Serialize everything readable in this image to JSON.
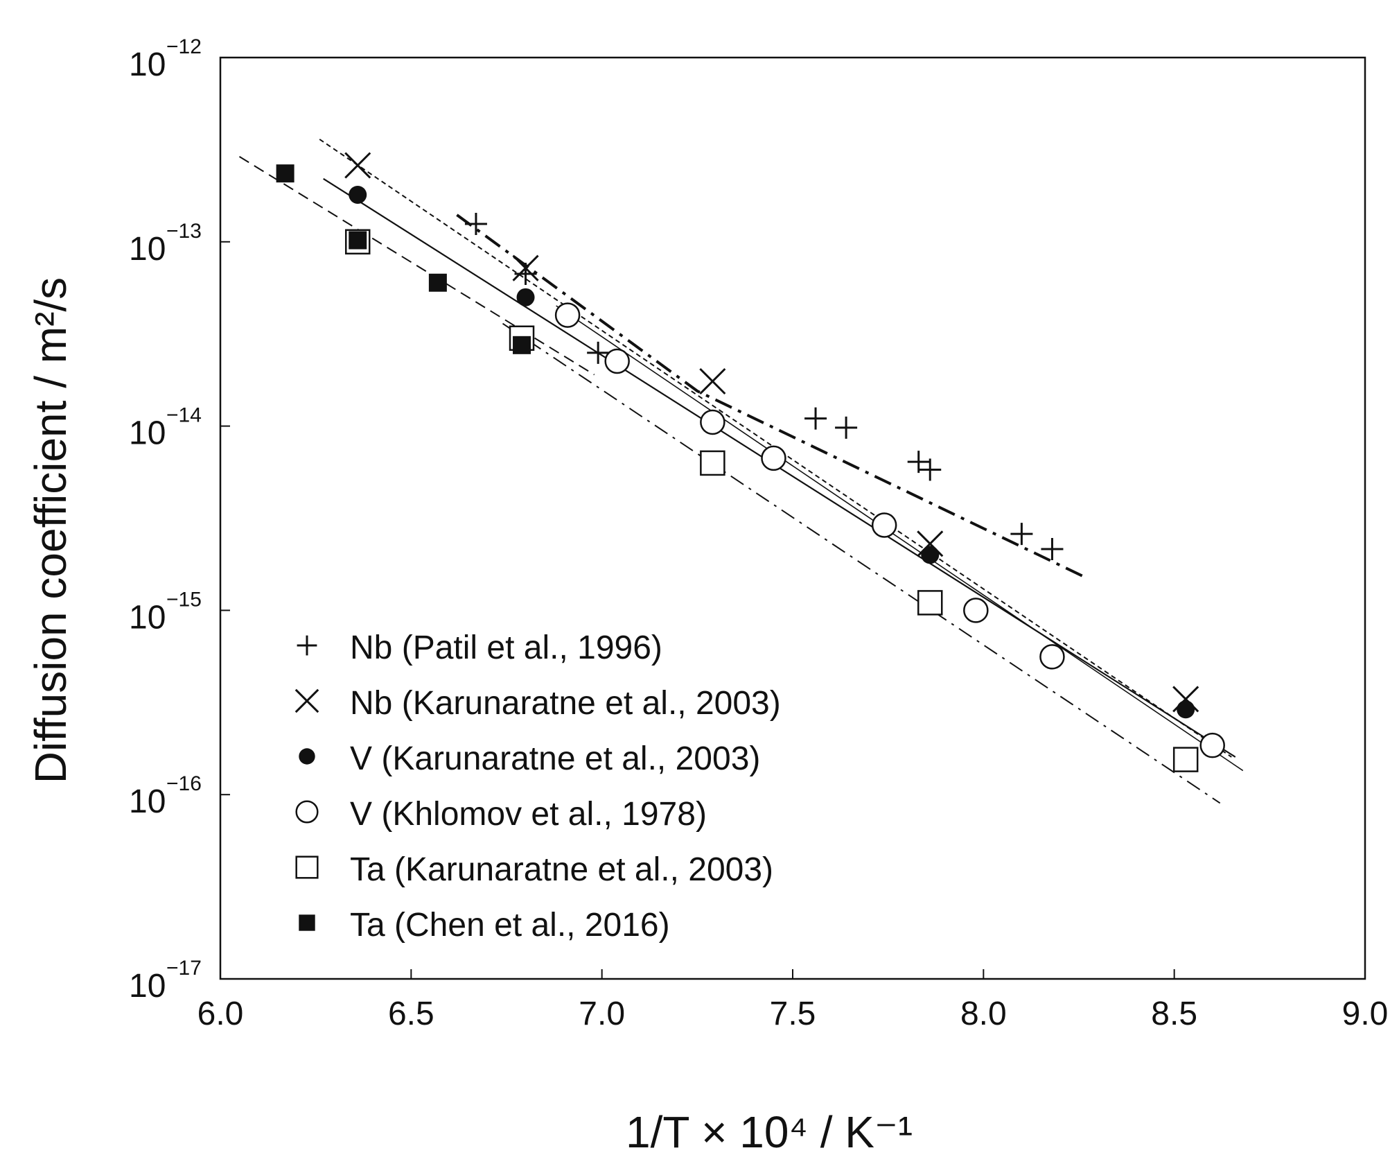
{
  "chart_data": {
    "type": "scatter",
    "xlabel": "1/T × 10⁴ / K⁻¹",
    "ylabel": "Diffusion coefficient / m²/s",
    "xlim": [
      6.0,
      9.0
    ],
    "ylim_log10": [
      -17,
      -12
    ],
    "y_scale": "log",
    "x_ticks": [
      "6.0",
      "6.5",
      "7.0",
      "7.5",
      "8.0",
      "8.5",
      "9.0"
    ],
    "y_ticks": [
      {
        "base": "10",
        "exp": "−12"
      },
      {
        "base": "10",
        "exp": "−13"
      },
      {
        "base": "10",
        "exp": "−14"
      },
      {
        "base": "10",
        "exp": "−15"
      },
      {
        "base": "10",
        "exp": "−16"
      },
      {
        "base": "10",
        "exp": "−17"
      }
    ],
    "legend_position": "bottom-left",
    "series": [
      {
        "name": "Nb (Patil et al., 1996)",
        "marker": "plus",
        "points": [
          [
            6.67,
            1.25e-13
          ],
          [
            6.8,
            6.7e-14
          ],
          [
            6.99,
            2.5e-14
          ],
          [
            7.56,
            1.1e-14
          ],
          [
            7.64,
            9.8e-15
          ],
          [
            7.83,
            6.4e-15
          ],
          [
            7.86,
            5.8e-15
          ],
          [
            8.1,
            2.6e-15
          ],
          [
            8.18,
            2.15e-15
          ]
        ],
        "fit": {
          "style": "dash-dot-thick",
          "points": [
            [
              6.62,
              1.4e-13
            ],
            [
              7.25,
              1.55e-14
            ],
            [
              8.27,
              1.5e-15
            ]
          ]
        }
      },
      {
        "name": "Nb (Karunaratne et al., 2003)",
        "marker": "cross",
        "points": [
          [
            6.36,
            2.6e-13
          ],
          [
            6.8,
            7.2e-14
          ],
          [
            7.29,
            1.75e-14
          ],
          [
            7.86,
            2.3e-15
          ],
          [
            8.53,
            3.3e-16
          ]
        ],
        "fit": {
          "style": "dotted",
          "points": [
            [
              6.26,
              3.6e-13
            ],
            [
              8.65,
              1.6e-16
            ]
          ]
        }
      },
      {
        "name": "V (Karunaratne et al., 2003)",
        "marker": "filled-circle",
        "points": [
          [
            6.36,
            1.8e-13
          ],
          [
            6.8,
            5e-14
          ],
          [
            7.86,
            2e-15
          ],
          [
            8.53,
            2.9e-16
          ]
        ],
        "fit": {
          "style": "solid",
          "points": [
            [
              6.27,
              2.2e-13
            ],
            [
              8.66,
              1.6e-16
            ]
          ]
        }
      },
      {
        "name": "V (Khlomov et al., 1978)",
        "marker": "open-circle",
        "points": [
          [
            6.91,
            4e-14
          ],
          [
            7.04,
            2.25e-14
          ],
          [
            7.29,
            1.05e-14
          ],
          [
            7.45,
            6.7e-15
          ],
          [
            7.74,
            2.9e-15
          ],
          [
            7.98,
            1e-15
          ],
          [
            8.18,
            5.6e-16
          ],
          [
            8.6,
            1.85e-16
          ]
        ],
        "fit": {
          "style": "solid-thin",
          "points": [
            [
              6.88,
              4.5e-14
            ],
            [
              8.68,
              1.35e-16
            ]
          ]
        }
      },
      {
        "name": "Ta (Karunaratne et al., 2003)",
        "marker": "open-square",
        "points": [
          [
            6.36,
            1e-13
          ],
          [
            6.79,
            3e-14
          ],
          [
            7.29,
            6.3e-15
          ],
          [
            7.86,
            1.1e-15
          ],
          [
            8.53,
            1.55e-16
          ]
        ],
        "fit": {
          "style": "dash-dot",
          "points": [
            [
              6.74,
              3.6e-14
            ],
            [
              8.62,
              9e-17
            ]
          ]
        }
      },
      {
        "name": "Ta (Chen et al., 2016)",
        "marker": "filled-square",
        "points": [
          [
            6.17,
            2.35e-13
          ],
          [
            6.36,
            1.02e-13
          ],
          [
            6.57,
            6e-14
          ],
          [
            6.79,
            2.75e-14
          ]
        ],
        "fit": {
          "style": "dashed",
          "points": [
            [
              6.05,
              2.9e-13
            ],
            [
              6.98,
              1.9e-14
            ]
          ]
        }
      }
    ]
  },
  "legend": {
    "items": [
      {
        "symbol": "Nb",
        "detail": "(Patil et al., 1996)",
        "marker": "plus"
      },
      {
        "symbol": "Nb",
        "detail": "(Karunaratne et al., 2003)",
        "marker": "cross"
      },
      {
        "symbol": "V",
        "detail": "(Karunaratne et al., 2003)",
        "marker": "filled-circle"
      },
      {
        "symbol": "V",
        "detail": "(Khlomov et al., 1978)",
        "marker": "open-circle"
      },
      {
        "symbol": "Ta",
        "detail": "(Karunaratne et al., 2003)",
        "marker": "open-square"
      },
      {
        "symbol": "Ta",
        "detail": "(Chen et al., 2016)",
        "marker": "filled-square"
      }
    ]
  },
  "colors": {
    "ink": "#111111",
    "background": "#ffffff"
  }
}
